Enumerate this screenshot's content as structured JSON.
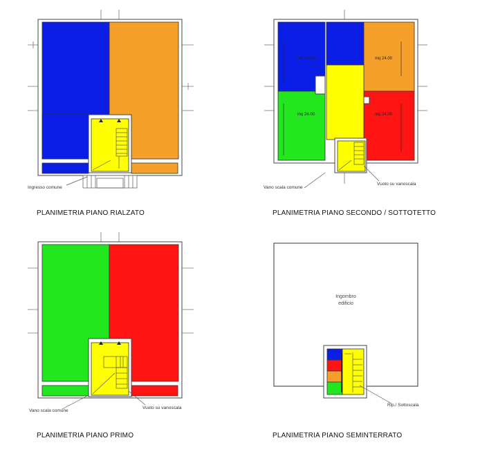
{
  "colors": {
    "blue": "#0a1ee6",
    "orange": "#f5a02a",
    "green": "#22e61e",
    "red": "#ff1414",
    "yellow": "#ffff00"
  },
  "plans": {
    "rialzato": {
      "title": "PLANIMETRIA PIANO RIALZATO",
      "note_ingresso": "Ingresso comune"
    },
    "secondo": {
      "title": "PLANIMETRIA PIANO SECONDO / SOTTOTETTO",
      "area_1": "mq 24.00",
      "area_2": "mq 24.00",
      "area_3": "mq 24.00",
      "area_4": "mq 24.00",
      "note_vano": "Vano scala comune",
      "note_vuoto": "Vuoto su vanoscala"
    },
    "primo": {
      "title": "PLANIMETRIA PIANO PRIMO",
      "note_vano": "Vano scala comune",
      "note_vuoto": "Vuoto su vanoscala"
    },
    "seminterrato": {
      "title": "PLANIMETRIA PIANO SEMINTERRATO",
      "ingombro_1": "Ingombro",
      "ingombro_2": "edificio",
      "note_rip": "Rip./ Sottoscala"
    }
  }
}
